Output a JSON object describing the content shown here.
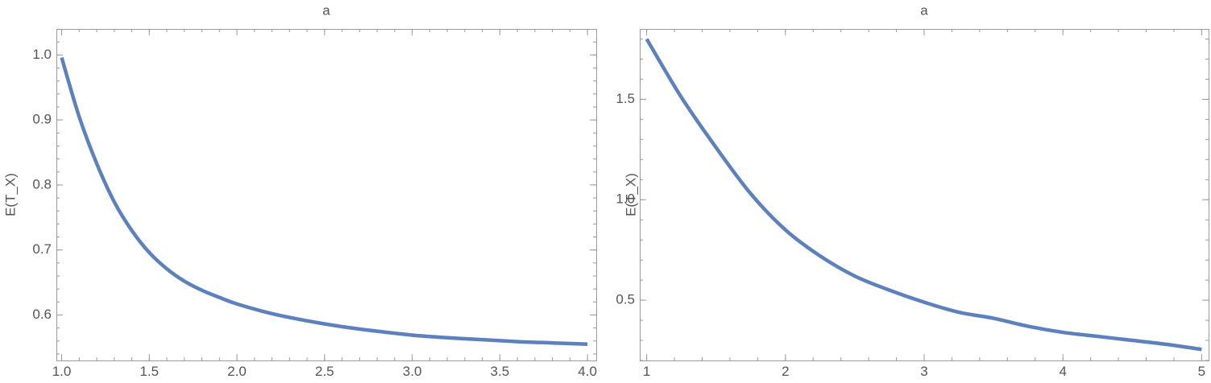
{
  "chart_data": [
    {
      "type": "line",
      "title": "a",
      "xlabel": "",
      "ylabel": "E(T_X)",
      "xlim": [
        0.97,
        4.05
      ],
      "ylim": [
        0.53,
        1.04
      ],
      "xticks": [
        1.0,
        1.5,
        2.0,
        2.5,
        3.0,
        3.5,
        4.0
      ],
      "xtick_labels": [
        "1.0",
        "1.5",
        "2.0",
        "2.5",
        "3.0",
        "3.5",
        "4.0"
      ],
      "yticks": [
        0.6,
        0.7,
        0.8,
        0.9,
        1.0
      ],
      "ytick_labels": [
        "0.6",
        "0.7",
        "0.8",
        "0.9",
        "1.0"
      ],
      "grid": false,
      "series": [
        {
          "color": "#5c81bd",
          "x": [
            1.0,
            1.1,
            1.2,
            1.3,
            1.4,
            1.5,
            1.6,
            1.7,
            1.8,
            1.9,
            2.0,
            2.2,
            2.4,
            2.6,
            2.8,
            3.0,
            3.2,
            3.4,
            3.6,
            3.8,
            4.0
          ],
          "y": [
            0.996,
            0.905,
            0.833,
            0.774,
            0.73,
            0.696,
            0.671,
            0.652,
            0.638,
            0.627,
            0.617,
            0.602,
            0.591,
            0.582,
            0.575,
            0.569,
            0.565,
            0.562,
            0.559,
            0.557,
            0.555
          ]
        }
      ]
    },
    {
      "type": "line",
      "title": "a",
      "xlabel": "",
      "ylabel": "E(T_X)",
      "xlim": [
        0.95,
        5.05
      ],
      "ylim": [
        0.2,
        1.85
      ],
      "xticks": [
        1,
        2,
        3,
        4,
        5
      ],
      "xtick_labels": [
        "1",
        "2",
        "3",
        "4",
        "5"
      ],
      "yticks": [
        0.5,
        1.0,
        1.5
      ],
      "ytick_labels": [
        "0.5",
        "1.0",
        "1.5"
      ],
      "grid": false,
      "series": [
        {
          "color": "#5c81bd",
          "x": [
            1.0,
            1.25,
            1.5,
            1.75,
            2.0,
            2.25,
            2.5,
            2.75,
            3.0,
            3.25,
            3.5,
            3.75,
            4.0,
            4.25,
            4.5,
            4.75,
            5.0
          ],
          "y": [
            1.8,
            1.51,
            1.26,
            1.03,
            0.85,
            0.72,
            0.62,
            0.55,
            0.49,
            0.44,
            0.41,
            0.37,
            0.34,
            0.32,
            0.3,
            0.28,
            0.255
          ]
        }
      ]
    }
  ]
}
